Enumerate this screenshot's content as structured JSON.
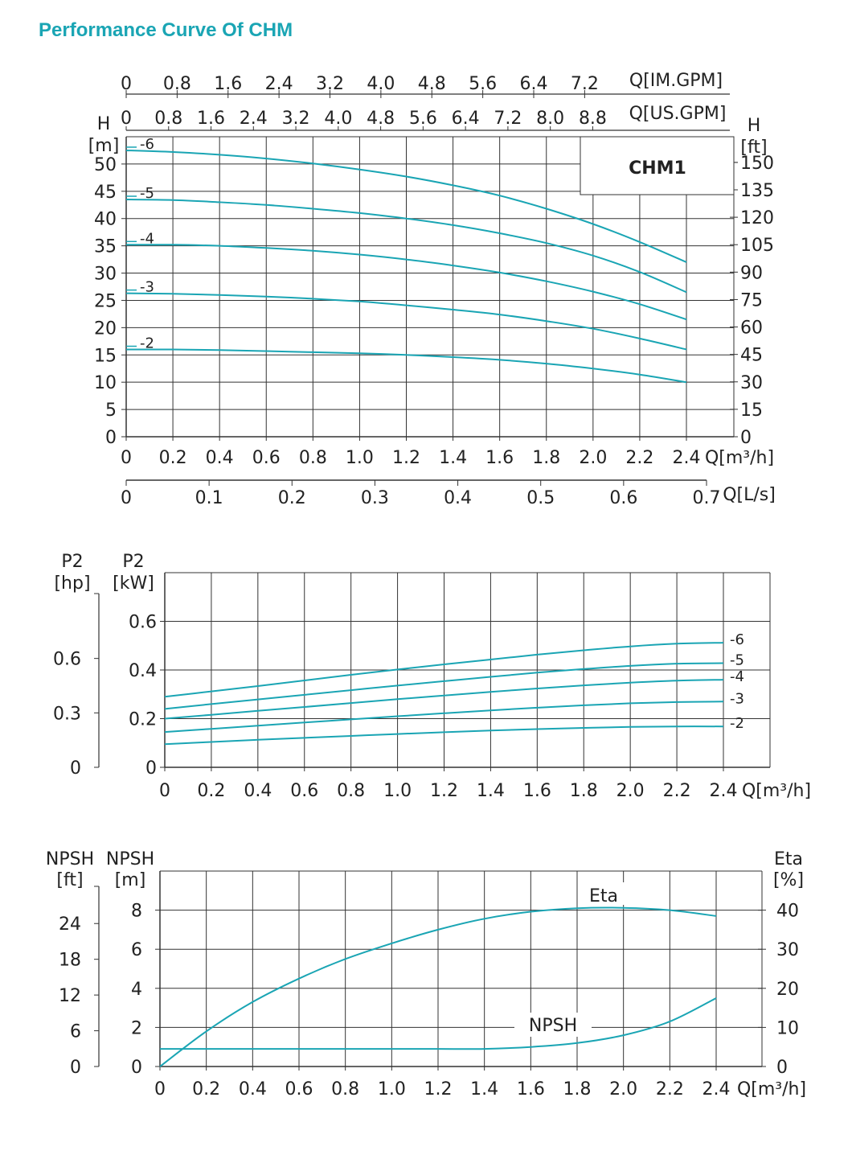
{
  "page": {
    "title": "Performance Curve Of CHM"
  },
  "colors": {
    "curve": "#1aa5b4",
    "grid": "#333333",
    "text": "#222222"
  },
  "chart_data": [
    {
      "id": "head",
      "type": "line",
      "title": "",
      "model_label": "CHM1",
      "xlabel": "Q[m³/h]",
      "xlim": [
        0,
        2.4
      ],
      "x_ticks": [
        "0",
        "0.2",
        "0.4",
        "0.6",
        "0.8",
        "1.0",
        "1.2",
        "1.4",
        "1.6",
        "1.8",
        "2.0",
        "2.2",
        "2.4"
      ],
      "ylabel_left_name": "H",
      "ylabel_left_unit": "[m]",
      "ylim": [
        0,
        55
      ],
      "y_ticks_left": [
        "0",
        "5",
        "10",
        "15",
        "20",
        "25",
        "30",
        "35",
        "40",
        "45",
        "50"
      ],
      "ylabel_right_name": "H",
      "ylabel_right_unit": "[ft]",
      "y_ticks_right": [
        "0",
        "15",
        "30",
        "45",
        "60",
        "75",
        "90",
        "105",
        "120",
        "135",
        "150"
      ],
      "secondary_x_axes": [
        {
          "label": "Q[IM.GPM]",
          "ticks": [
            "0",
            "0.8",
            "1.6",
            "2.4",
            "3.2",
            "4.0",
            "4.8",
            "5.6",
            "6.4",
            "7.2"
          ]
        },
        {
          "label": "Q[US.GPM]",
          "ticks": [
            "0",
            "0.8",
            "1.6",
            "2.4",
            "3.2",
            "4.0",
            "4.8",
            "5.6",
            "6.4",
            "7.2",
            "8.0",
            "8.8"
          ]
        },
        {
          "label": "Q[L/s]",
          "ticks": [
            "0",
            "0.1",
            "0.2",
            "0.3",
            "0.4",
            "0.5",
            "0.6",
            "0.7"
          ]
        }
      ],
      "x": [
        0,
        0.2,
        0.4,
        0.6,
        0.8,
        1.0,
        1.2,
        1.4,
        1.6,
        1.8,
        2.0,
        2.2,
        2.4
      ],
      "series": [
        {
          "name": "-6",
          "values": [
            52.5,
            52.2,
            51.7,
            51.0,
            50.1,
            49.0,
            47.7,
            46.1,
            44.2,
            41.8,
            39.0,
            35.7,
            32.0
          ]
        },
        {
          "name": "-5",
          "values": [
            43.5,
            43.4,
            43.0,
            42.5,
            41.8,
            41.0,
            40.0,
            38.8,
            37.3,
            35.5,
            33.2,
            30.2,
            26.5
          ]
        },
        {
          "name": "-4",
          "values": [
            35.2,
            35.2,
            35.0,
            34.6,
            34.1,
            33.4,
            32.5,
            31.4,
            30.1,
            28.5,
            26.6,
            24.3,
            21.5
          ]
        },
        {
          "name": "-3",
          "values": [
            26.3,
            26.2,
            26.0,
            25.7,
            25.3,
            24.8,
            24.1,
            23.3,
            22.4,
            21.2,
            19.8,
            18.0,
            16.0
          ]
        },
        {
          "name": "-2",
          "values": [
            16.0,
            16.0,
            15.9,
            15.7,
            15.5,
            15.3,
            15.0,
            14.6,
            14.1,
            13.4,
            12.5,
            11.4,
            10.0
          ]
        }
      ]
    },
    {
      "id": "power",
      "type": "line",
      "title": "",
      "xlabel": "Q[m³/h]",
      "xlim": [
        0,
        2.4
      ],
      "x_ticks": [
        "0",
        "0.2",
        "0.4",
        "0.6",
        "0.8",
        "1.0",
        "1.2",
        "1.4",
        "1.6",
        "1.8",
        "2.0",
        "2.2",
        "2.4"
      ],
      "ylabel_left_name": "P2",
      "ylabel_left_unit": "[kW]",
      "ylim": [
        0,
        0.8
      ],
      "y_ticks_left": [
        "0",
        "0.2",
        "0.4",
        "0.6"
      ],
      "ylabel_far_name": "P2",
      "ylabel_far_unit": "[hp]",
      "y_ticks_far": [
        "0",
        "0.3",
        "0.6"
      ],
      "x": [
        0,
        0.2,
        0.4,
        0.6,
        0.8,
        1.0,
        1.2,
        1.4,
        1.6,
        1.8,
        2.0,
        2.2,
        2.4
      ],
      "series": [
        {
          "name": "-6",
          "values": [
            0.29,
            0.312,
            0.334,
            0.357,
            0.38,
            0.402,
            0.423,
            0.443,
            0.463,
            0.481,
            0.497,
            0.508,
            0.512
          ]
        },
        {
          "name": "-5",
          "values": [
            0.24,
            0.26,
            0.279,
            0.298,
            0.317,
            0.336,
            0.354,
            0.372,
            0.389,
            0.404,
            0.417,
            0.426,
            0.428
          ]
        },
        {
          "name": "-4",
          "values": [
            0.2,
            0.216,
            0.232,
            0.248,
            0.264,
            0.28,
            0.295,
            0.31,
            0.324,
            0.337,
            0.348,
            0.356,
            0.36
          ]
        },
        {
          "name": "-3",
          "values": [
            0.145,
            0.158,
            0.171,
            0.184,
            0.197,
            0.21,
            0.222,
            0.234,
            0.245,
            0.255,
            0.263,
            0.268,
            0.27
          ]
        },
        {
          "name": "-2",
          "values": [
            0.095,
            0.104,
            0.113,
            0.121,
            0.129,
            0.137,
            0.144,
            0.151,
            0.157,
            0.162,
            0.166,
            0.168,
            0.168
          ]
        }
      ]
    },
    {
      "id": "npsh-eta",
      "type": "line",
      "title": "",
      "xlabel": "Q[m³/h]",
      "xlim": [
        0,
        2.4
      ],
      "x_ticks": [
        "0",
        "0.2",
        "0.4",
        "0.6",
        "0.8",
        "1.0",
        "1.2",
        "1.4",
        "1.6",
        "1.8",
        "2.0",
        "2.2",
        "2.4"
      ],
      "ylabel_left_name": "NPSH",
      "ylabel_left_unit": "[m]",
      "ylim": [
        0,
        10
      ],
      "y_ticks_left": [
        "0",
        "2",
        "4",
        "6",
        "8"
      ],
      "ylabel_far_name": "NPSH",
      "ylabel_far_unit": "[ft]",
      "y_ticks_far": [
        "0",
        "6",
        "12",
        "18",
        "24"
      ],
      "ylabel_right_name": "Eta",
      "ylabel_right_unit": "[%]",
      "y_ticks_right": [
        "0",
        "10",
        "20",
        "30",
        "40"
      ],
      "x": [
        0,
        0.2,
        0.4,
        0.6,
        0.8,
        1.0,
        1.2,
        1.4,
        1.6,
        1.8,
        2.0,
        2.2,
        2.4
      ],
      "series": [
        {
          "name": "Eta",
          "axis": "right",
          "values": [
            0,
            9.0,
            16.5,
            22.5,
            27.5,
            31.5,
            35.0,
            37.8,
            39.6,
            40.5,
            40.6,
            40.0,
            38.5
          ]
        },
        {
          "name": "NPSH",
          "axis": "left",
          "values": [
            0.9,
            0.9,
            0.9,
            0.9,
            0.9,
            0.9,
            0.9,
            0.9,
            1.0,
            1.2,
            1.6,
            2.3,
            3.5
          ]
        }
      ]
    }
  ]
}
